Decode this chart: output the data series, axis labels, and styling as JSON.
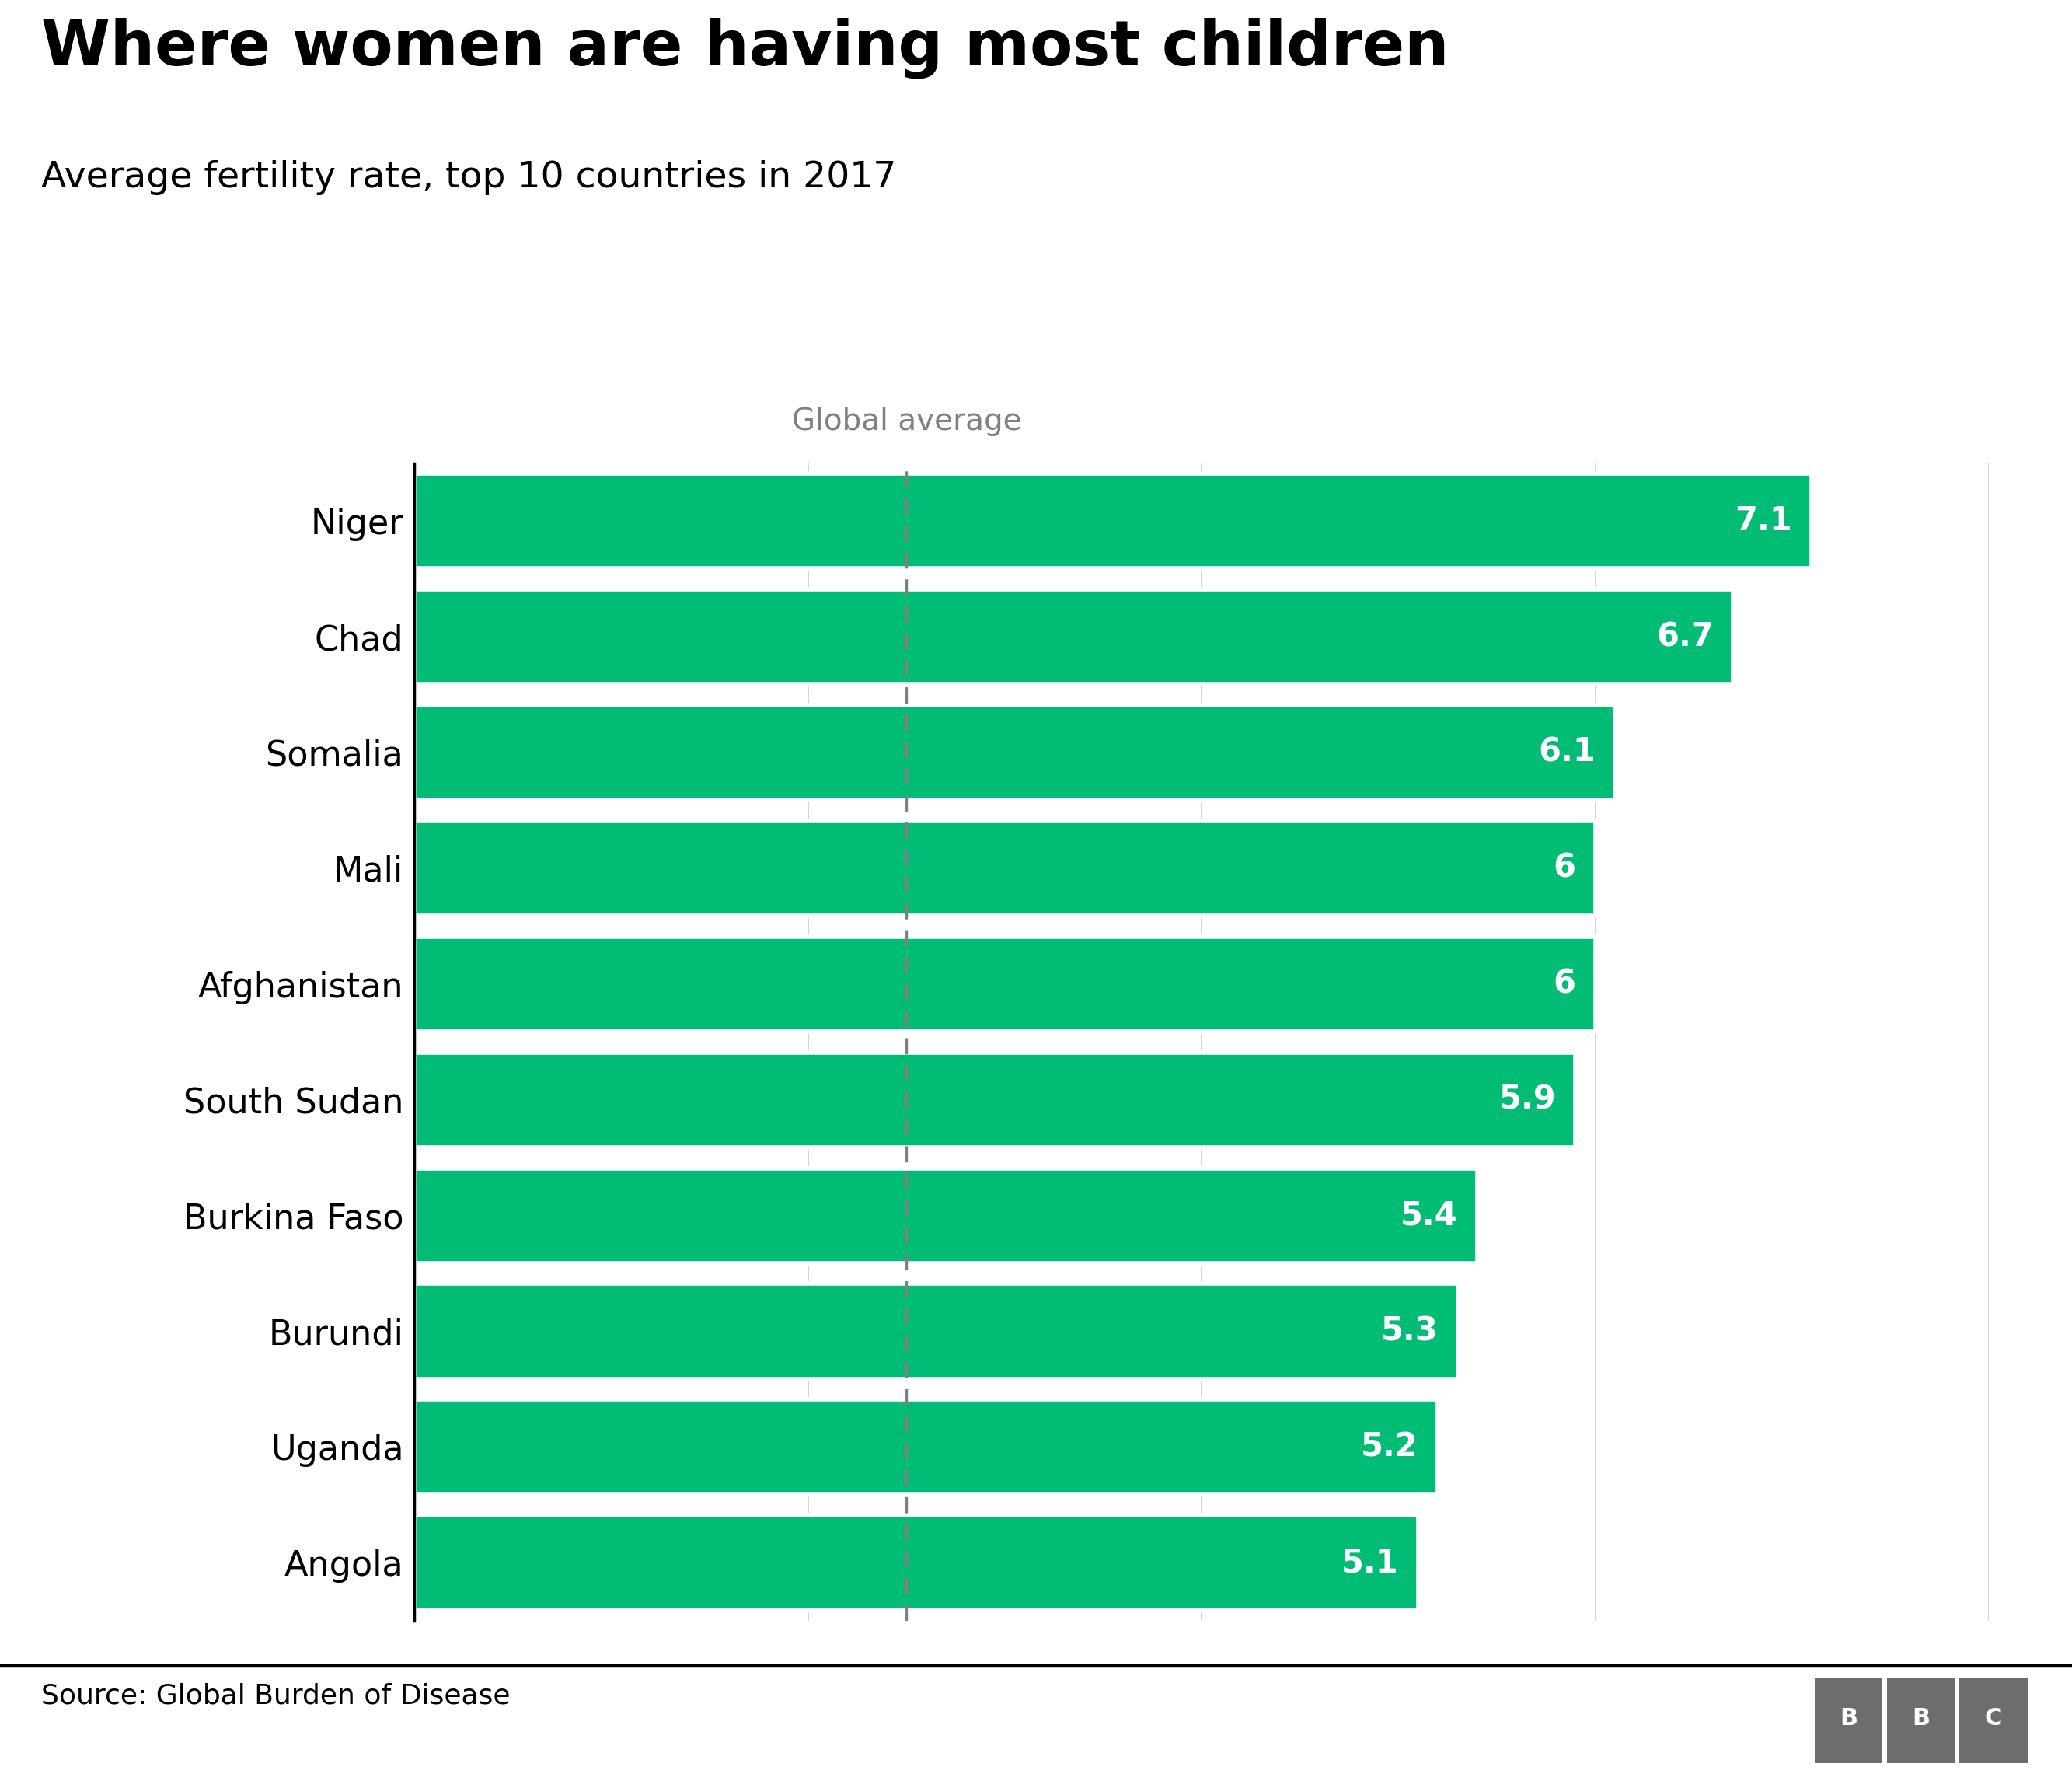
{
  "title": "Where women are having most children",
  "subtitle": "Average fertility rate, top 10 countries in 2017",
  "source": "Source: Global Burden of Disease",
  "categories": [
    "Niger",
    "Chad",
    "Somalia",
    "Mali",
    "Afghanistan",
    "South Sudan",
    "Burkina Faso",
    "Burundi",
    "Uganda",
    "Angola"
  ],
  "values": [
    7.1,
    6.7,
    6.1,
    6.0,
    6.0,
    5.9,
    5.4,
    5.3,
    5.2,
    5.1
  ],
  "bar_color": "#00bc74",
  "global_average": 2.5,
  "global_average_label": "Global average",
  "xlim": [
    0,
    8
  ],
  "background_color": "#ffffff",
  "title_fontsize": 58,
  "subtitle_fontsize": 34,
  "label_fontsize": 32,
  "value_fontsize": 30,
  "source_fontsize": 26,
  "global_avg_fontsize": 28,
  "bbc_box_color": "#6d6d6d"
}
